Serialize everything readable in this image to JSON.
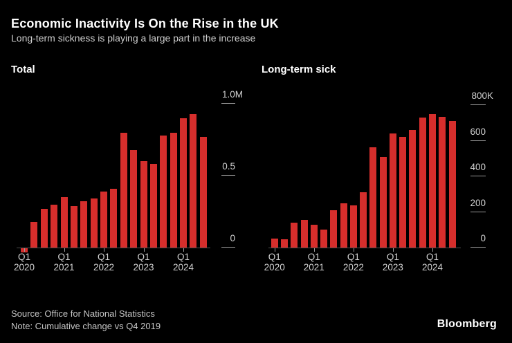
{
  "header": {
    "title": "Economic Inactivity Is On the Rise in the UK",
    "subtitle": "Long-term sickness is playing a large part in the increase"
  },
  "colors": {
    "background": "#000000",
    "bar_red": "#d62e2c",
    "title_text": "#ffffff",
    "muted_text": "#cfcfcf",
    "axis_line": "#4d4d4d",
    "tick_line": "#9c9c9c"
  },
  "chart_data": [
    {
      "type": "bar",
      "title": "Total",
      "subtitle_note": "Cumulative change vs Q4 2019",
      "unit": "millions of people",
      "bar_color": "#d62e2c",
      "grid": false,
      "legend": "none",
      "categories": [
        "Q1 2020",
        "Q2 2020",
        "Q3 2020",
        "Q4 2020",
        "Q1 2021",
        "Q2 2021",
        "Q3 2021",
        "Q4 2021",
        "Q1 2022",
        "Q2 2022",
        "Q3 2022",
        "Q4 2022",
        "Q1 2023",
        "Q2 2023",
        "Q3 2023",
        "Q4 2023",
        "Q1 2024",
        "Q2 2024",
        "Q3 2024"
      ],
      "values": [
        -0.03,
        0.18,
        0.27,
        0.3,
        0.35,
        0.29,
        0.32,
        0.34,
        0.39,
        0.41,
        0.8,
        0.68,
        0.6,
        0.58,
        0.78,
        0.8,
        0.9,
        0.93,
        0.77
      ],
      "ylim": [
        -0.05,
        1.0
      ],
      "yticks": [
        {
          "label": "1.0M",
          "value": 1.0
        },
        {
          "label": "0.5",
          "value": 0.5
        },
        {
          "label": "0",
          "value": 0
        }
      ],
      "xticks": [
        {
          "index": 0,
          "line1": "Q1",
          "line2": "2020"
        },
        {
          "index": 4,
          "line1": "Q1",
          "line2": "2021"
        },
        {
          "index": 8,
          "line1": "Q1",
          "line2": "2022"
        },
        {
          "index": 12,
          "line1": "Q1",
          "line2": "2023"
        },
        {
          "index": 16,
          "line1": "Q1",
          "line2": "2024"
        }
      ]
    },
    {
      "type": "bar",
      "title": "Long-term sick",
      "subtitle_note": "Cumulative change vs Q4 2019",
      "unit": "thousands of people",
      "bar_color": "#d62e2c",
      "grid": false,
      "legend": "none",
      "categories": [
        "Q1 2020",
        "Q2 2020",
        "Q3 2020",
        "Q4 2020",
        "Q1 2021",
        "Q2 2021",
        "Q3 2021",
        "Q4 2021",
        "Q1 2022",
        "Q2 2022",
        "Q3 2022",
        "Q4 2022",
        "Q1 2023",
        "Q2 2023",
        "Q3 2023",
        "Q4 2023",
        "Q1 2024",
        "Q2 2024",
        "Q3 2024"
      ],
      "values": [
        50,
        45,
        140,
        155,
        130,
        100,
        210,
        250,
        235,
        310,
        565,
        510,
        640,
        620,
        660,
        730,
        750,
        735,
        710
      ],
      "ylim": [
        0,
        800
      ],
      "yticks": [
        {
          "label": "800K",
          "value": 800
        },
        {
          "label": "600",
          "value": 600
        },
        {
          "label": "400",
          "value": 400
        },
        {
          "label": "200",
          "value": 200
        },
        {
          "label": "0",
          "value": 0
        }
      ],
      "xticks": [
        {
          "index": 0,
          "line1": "Q1",
          "line2": "2020"
        },
        {
          "index": 4,
          "line1": "Q1",
          "line2": "2021"
        },
        {
          "index": 8,
          "line1": "Q1",
          "line2": "2022"
        },
        {
          "index": 12,
          "line1": "Q1",
          "line2": "2023"
        },
        {
          "index": 16,
          "line1": "Q1",
          "line2": "2024"
        }
      ]
    }
  ],
  "footer": {
    "source": "Source: Office for National Statistics",
    "note": "Note: Cumulative change vs Q4 2019",
    "brand": "Bloomberg"
  }
}
